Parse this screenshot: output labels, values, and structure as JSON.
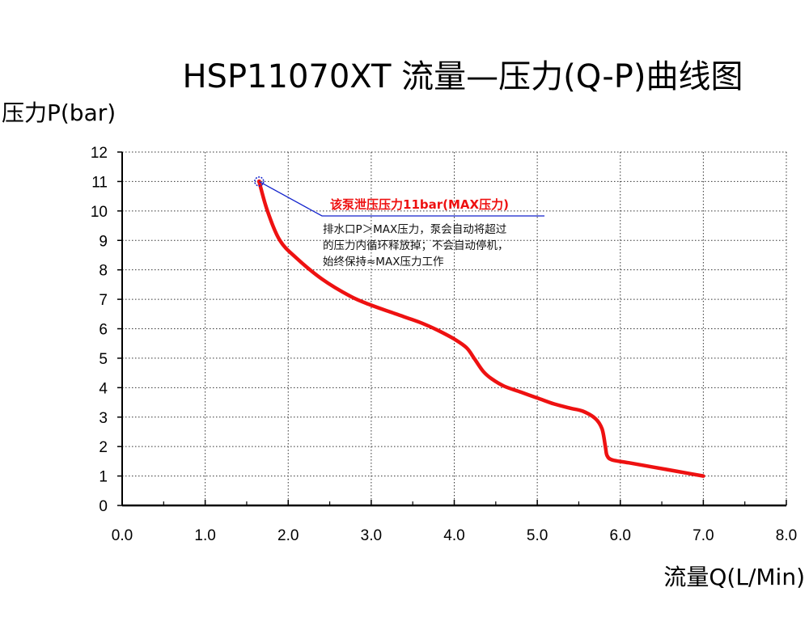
{
  "chart_data": {
    "type": "line",
    "title": "HSP11070XT 流量—压力(Q-P)曲线图",
    "xlabel": "流量Q(L/Min)",
    "ylabel": "压力P(bar)",
    "xlim": [
      0,
      8
    ],
    "ylim": [
      0,
      12
    ],
    "x_ticks": [
      "0.0",
      "1.0",
      "2.0",
      "3.0",
      "4.0",
      "5.0",
      "6.0",
      "7.0",
      "8.0"
    ],
    "y_ticks": [
      "0",
      "1",
      "2",
      "3",
      "4",
      "5",
      "6",
      "7",
      "8",
      "9",
      "10",
      "11",
      "12"
    ],
    "grid": true,
    "series": [
      {
        "color": "#ee1111",
        "x": [
          1.65,
          1.75,
          1.9,
          2.1,
          2.4,
          2.75,
          3.0,
          3.3,
          3.6,
          3.8,
          4.0,
          4.15,
          4.25,
          4.35,
          4.45,
          4.6,
          4.8,
          5.0,
          5.2,
          5.4,
          5.55,
          5.7,
          5.78,
          5.82,
          5.84,
          5.9,
          6.1,
          6.4,
          6.7,
          7.0
        ],
        "y": [
          11.0,
          10.0,
          9.0,
          8.4,
          7.7,
          7.1,
          6.8,
          6.5,
          6.2,
          5.95,
          5.65,
          5.35,
          4.95,
          4.55,
          4.3,
          4.05,
          3.85,
          3.65,
          3.45,
          3.3,
          3.2,
          2.95,
          2.6,
          2.0,
          1.7,
          1.55,
          1.45,
          1.3,
          1.15,
          1.0
        ]
      }
    ],
    "annotations": {
      "marker": {
        "x": 1.65,
        "y": 11.0,
        "color": "#1122cc"
      },
      "heading": "该泵泄压压力11bar(MAX压力)",
      "heading_color": "#ee1111",
      "leader_color": "#1122cc",
      "lines": [
        "排水口P＞MAX压力，泵会自动将超过",
        "的压力内循环释放掉；不会自动停机，",
        "始终保持≈MAX压力工作"
      ]
    }
  }
}
